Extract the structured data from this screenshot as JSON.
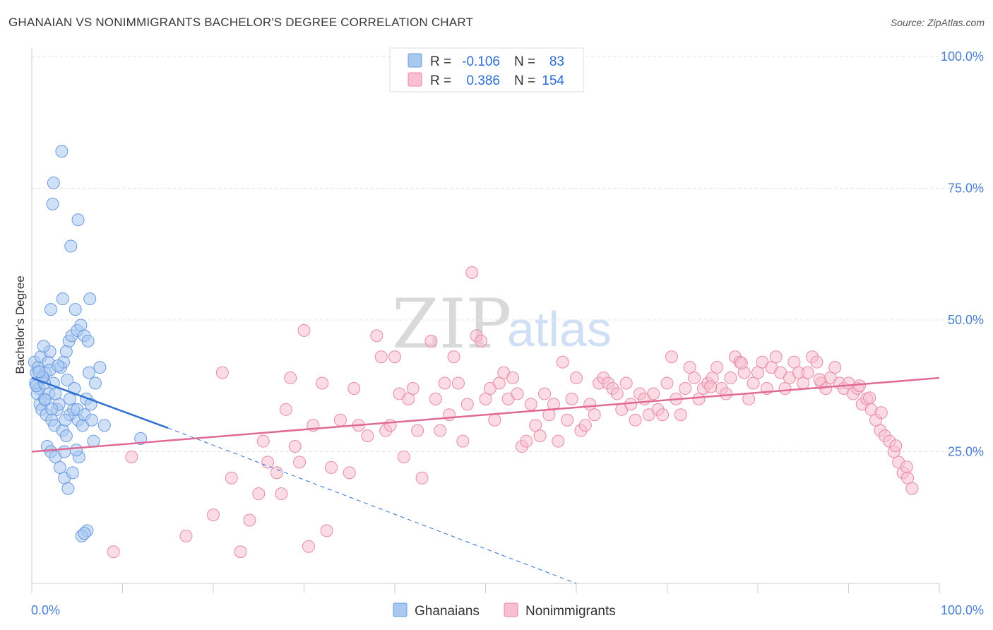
{
  "title": "GHANAIAN VS NONIMMIGRANTS BACHELOR'S DEGREE CORRELATION CHART",
  "source": "Source: ZipAtlas.com",
  "watermark": {
    "zip": "ZIP",
    "atlas": "atlas"
  },
  "legend": {
    "rows": [
      {
        "r_label": "R =",
        "r_value": "-0.106",
        "n_label": "N =",
        "n_value": "83",
        "color": "#a9c8f0",
        "stroke": "#6a9be0"
      },
      {
        "r_label": "R =",
        "r_value": "0.386",
        "n_label": "N =",
        "n_value": "154",
        "color": "#f7bfd0",
        "stroke": "#e88aa8"
      }
    ]
  },
  "bottom_legend": [
    {
      "label": "Ghanaians",
      "color": "#a9c8f0",
      "stroke": "#6a9be0"
    },
    {
      "label": "Nonimmigrants",
      "color": "#f7bfd0",
      "stroke": "#e88aa8"
    }
  ],
  "chart_data": {
    "type": "scatter",
    "title": "GHANAIAN VS NONIMMIGRANTS BACHELOR'S DEGREE CORRELATION CHART",
    "xlabel": "",
    "ylabel": "Bachelor's Degree",
    "xlim": [
      0,
      100
    ],
    "ylim": [
      0,
      100
    ],
    "x_tick_labels": [
      "0.0%",
      "100.0%"
    ],
    "y_tick_labels": [
      "25.0%",
      "50.0%",
      "75.0%",
      "100.0%"
    ],
    "y_ticks": [
      25,
      50,
      75,
      100
    ],
    "grid": true,
    "series": [
      {
        "name": "Ghanaians",
        "color": "#6a9be0",
        "fill": "#a9c8f0",
        "trend": {
          "x0": 0,
          "y0": 39,
          "x1": 15,
          "y1": 29.5,
          "dash_to_x": 60,
          "dash_to_y": 0
        },
        "points": [
          [
            0.3,
            42
          ],
          [
            0.5,
            40
          ],
          [
            0.4,
            38
          ],
          [
            0.7,
            41
          ],
          [
            1,
            43
          ],
          [
            0.8,
            37
          ],
          [
            1.2,
            39
          ],
          [
            1.5,
            40
          ],
          [
            0.6,
            36
          ],
          [
            1.8,
            42
          ],
          [
            2,
            44
          ],
          [
            0.9,
            34
          ],
          [
            1.1,
            33
          ],
          [
            1.4,
            35
          ],
          [
            1.6,
            32
          ],
          [
            2.2,
            31
          ],
          [
            2.5,
            30
          ],
          [
            2.8,
            33
          ],
          [
            3,
            34
          ],
          [
            1.9,
            36
          ],
          [
            2.4,
            38
          ],
          [
            3.2,
            41
          ],
          [
            3.5,
            42
          ],
          [
            3.8,
            44
          ],
          [
            4.1,
            46
          ],
          [
            4.4,
            47
          ],
          [
            5,
            48
          ],
          [
            5.4,
            49
          ],
          [
            5.8,
            47
          ],
          [
            6.2,
            46
          ],
          [
            3.4,
            29
          ],
          [
            3.8,
            28
          ],
          [
            4.2,
            32
          ],
          [
            4.6,
            33
          ],
          [
            5.1,
            31
          ],
          [
            5.6,
            30
          ],
          [
            6,
            35
          ],
          [
            6.5,
            34
          ],
          [
            7,
            38
          ],
          [
            7.5,
            41
          ],
          [
            1.7,
            26
          ],
          [
            2.1,
            25
          ],
          [
            2.6,
            24
          ],
          [
            3.1,
            22
          ],
          [
            3.6,
            20
          ],
          [
            4,
            18
          ],
          [
            4.5,
            21
          ],
          [
            5.2,
            24
          ],
          [
            6.8,
            27
          ],
          [
            8,
            30
          ],
          [
            3.3,
            82
          ],
          [
            2.4,
            76
          ],
          [
            2.3,
            72
          ],
          [
            5.1,
            69
          ],
          [
            4.3,
            64
          ],
          [
            2.1,
            52
          ],
          [
            3.4,
            54
          ],
          [
            6.4,
            54
          ],
          [
            1.3,
            45
          ],
          [
            4.8,
            52
          ],
          [
            6.3,
            40
          ],
          [
            6.1,
            10
          ],
          [
            5.5,
            9
          ],
          [
            5.8,
            9.5
          ],
          [
            0.5,
            37.5
          ],
          [
            1.4,
            38
          ],
          [
            2.6,
            36
          ],
          [
            3.7,
            31
          ],
          [
            4.2,
            35
          ],
          [
            5,
            33
          ],
          [
            5.8,
            32
          ],
          [
            6.6,
            31
          ],
          [
            12,
            27.5
          ],
          [
            2,
            40.5
          ],
          [
            1.2,
            39.2
          ],
          [
            0.8,
            40.2
          ],
          [
            2.9,
            41.3
          ],
          [
            3.9,
            38.6
          ],
          [
            4.7,
            37
          ],
          [
            1.5,
            34.8
          ],
          [
            2.2,
            33.1
          ],
          [
            3.6,
            25
          ],
          [
            4.9,
            25.3
          ]
        ]
      },
      {
        "name": "Nonimmigrants",
        "color": "#e88aa8",
        "fill": "#f7bfd0",
        "trend": {
          "x0": 0,
          "y0": 25,
          "x1": 100,
          "y1": 39
        },
        "points": [
          [
            9,
            6
          ],
          [
            11,
            24
          ],
          [
            17,
            9
          ],
          [
            20,
            13
          ],
          [
            21,
            40
          ],
          [
            22,
            20
          ],
          [
            23,
            6
          ],
          [
            24,
            12
          ],
          [
            25,
            17
          ],
          [
            25.5,
            27
          ],
          [
            26,
            23
          ],
          [
            27,
            21
          ],
          [
            27.5,
            17
          ],
          [
            28,
            33
          ],
          [
            28.5,
            39
          ],
          [
            29,
            26
          ],
          [
            29.5,
            23
          ],
          [
            30,
            48
          ],
          [
            30.5,
            7
          ],
          [
            31,
            30
          ],
          [
            32,
            38
          ],
          [
            32.5,
            10
          ],
          [
            33,
            22
          ],
          [
            34,
            31
          ],
          [
            35,
            21
          ],
          [
            35.5,
            37
          ],
          [
            36,
            30
          ],
          [
            37,
            28
          ],
          [
            38,
            47
          ],
          [
            38.5,
            43
          ],
          [
            39,
            29
          ],
          [
            39.5,
            30
          ],
          [
            40,
            43
          ],
          [
            40.5,
            36
          ],
          [
            41,
            24
          ],
          [
            41.5,
            35
          ],
          [
            42,
            37
          ],
          [
            42.5,
            29
          ],
          [
            43,
            20
          ],
          [
            44,
            46
          ],
          [
            44.5,
            35
          ],
          [
            45,
            29
          ],
          [
            45.5,
            38
          ],
          [
            46,
            32
          ],
          [
            46.5,
            43
          ],
          [
            47,
            38
          ],
          [
            47.5,
            27
          ],
          [
            48,
            34
          ],
          [
            48.5,
            59
          ],
          [
            49,
            47
          ],
          [
            49.5,
            46
          ],
          [
            50,
            35
          ],
          [
            50.5,
            37
          ],
          [
            51,
            31
          ],
          [
            51.5,
            38
          ],
          [
            52,
            40
          ],
          [
            52.5,
            35
          ],
          [
            53,
            39
          ],
          [
            53.5,
            36
          ],
          [
            54,
            26
          ],
          [
            54.5,
            27
          ],
          [
            55,
            34
          ],
          [
            55.5,
            30
          ],
          [
            56,
            28
          ],
          [
            56.5,
            36
          ],
          [
            57,
            32
          ],
          [
            57.5,
            34
          ],
          [
            58,
            27
          ],
          [
            58.5,
            42
          ],
          [
            59,
            31
          ],
          [
            59.5,
            35
          ],
          [
            60,
            39
          ],
          [
            60.5,
            29
          ],
          [
            61,
            30
          ],
          [
            61.5,
            34
          ],
          [
            62,
            32
          ],
          [
            62.5,
            38
          ],
          [
            63,
            39
          ],
          [
            63.5,
            38
          ],
          [
            64,
            37
          ],
          [
            64.5,
            36
          ],
          [
            65,
            33
          ],
          [
            65.5,
            38
          ],
          [
            66,
            34
          ],
          [
            66.5,
            31
          ],
          [
            67,
            36
          ],
          [
            67.5,
            35
          ],
          [
            68,
            32
          ],
          [
            68.5,
            36
          ],
          [
            69,
            33
          ],
          [
            69.5,
            32
          ],
          [
            70,
            38
          ],
          [
            70.5,
            43
          ],
          [
            71,
            35
          ],
          [
            71.5,
            32
          ],
          [
            72,
            37
          ],
          [
            72.5,
            41
          ],
          [
            73,
            39
          ],
          [
            73.5,
            35
          ],
          [
            74,
            37
          ],
          [
            74.5,
            38
          ],
          [
            75,
            39
          ],
          [
            75.5,
            41
          ],
          [
            76,
            37
          ],
          [
            76.5,
            36
          ],
          [
            77,
            39
          ],
          [
            77.5,
            43
          ],
          [
            78,
            42
          ],
          [
            78.5,
            40
          ],
          [
            79,
            35
          ],
          [
            79.5,
            38
          ],
          [
            80,
            40
          ],
          [
            80.5,
            42
          ],
          [
            81,
            37
          ],
          [
            81.5,
            41
          ],
          [
            82,
            43
          ],
          [
            82.5,
            40
          ],
          [
            83,
            37
          ],
          [
            83.5,
            39
          ],
          [
            84,
            42
          ],
          [
            84.5,
            40
          ],
          [
            85,
            38
          ],
          [
            85.5,
            40
          ],
          [
            86,
            43
          ],
          [
            86.5,
            42
          ],
          [
            87,
            38
          ],
          [
            87.5,
            37
          ],
          [
            88,
            39
          ],
          [
            88.5,
            41
          ],
          [
            89,
            38
          ],
          [
            89.5,
            37
          ],
          [
            90,
            38
          ],
          [
            90.5,
            36
          ],
          [
            91,
            37
          ],
          [
            91.5,
            34
          ],
          [
            92,
            35
          ],
          [
            92.5,
            33
          ],
          [
            93,
            31
          ],
          [
            93.5,
            29
          ],
          [
            94,
            28
          ],
          [
            94.5,
            27
          ],
          [
            95,
            25
          ],
          [
            95.5,
            23
          ],
          [
            96,
            21
          ],
          [
            96.5,
            20
          ],
          [
            97,
            18
          ],
          [
            78.2,
            41.8
          ],
          [
            86.8,
            38.7
          ],
          [
            91.2,
            37.5
          ],
          [
            92.3,
            35.2
          ],
          [
            93.6,
            32.4
          ],
          [
            95.2,
            26.1
          ],
          [
            96.4,
            22.1
          ],
          [
            74.8,
            37.3
          ]
        ]
      }
    ]
  }
}
